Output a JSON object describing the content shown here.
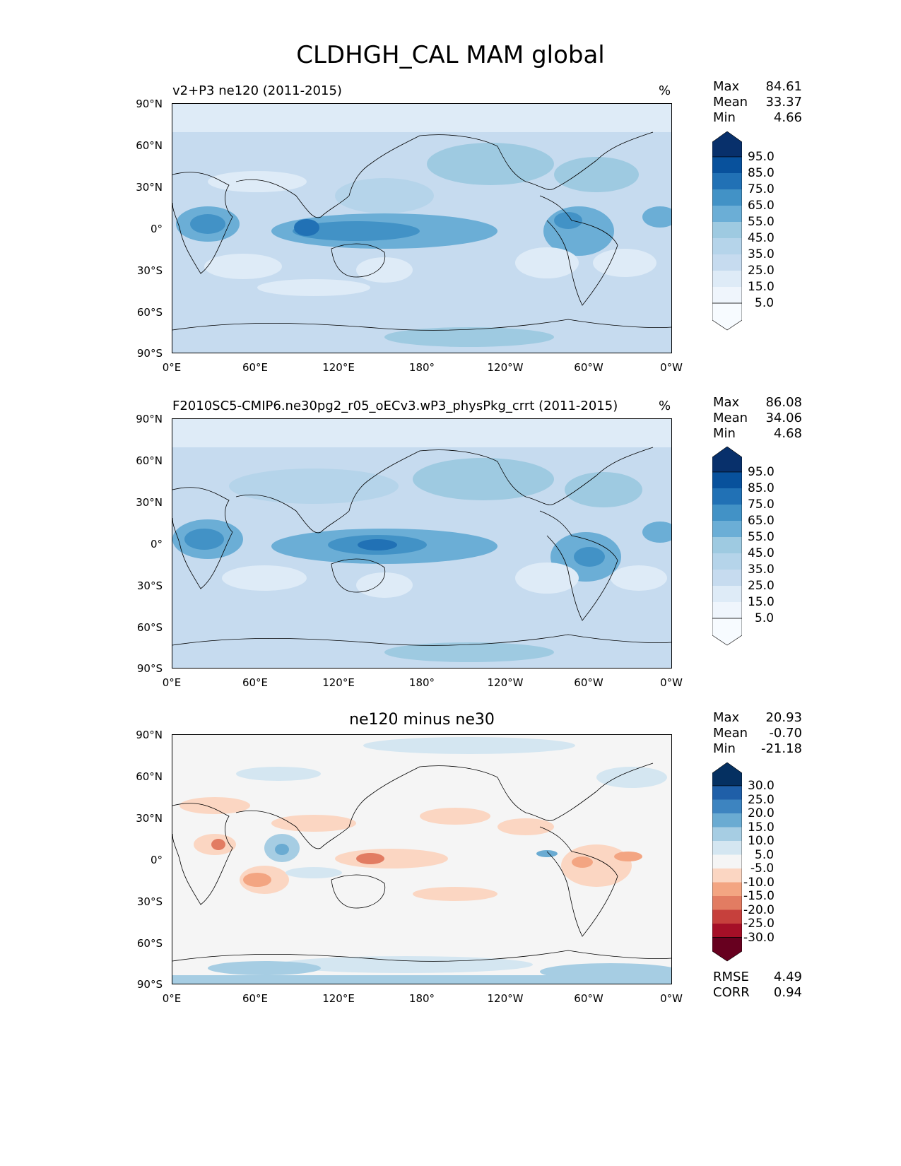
{
  "figure_title": "CLDHGH_CAL MAM global",
  "lat_ticks": [
    "90°N",
    "60°N",
    "30°N",
    "0°",
    "30°S",
    "60°S",
    "90°S"
  ],
  "lon_ticks": [
    "0°E",
    "60°E",
    "120°E",
    "180°",
    "120°W",
    "60°W",
    "0°W"
  ],
  "panels": [
    {
      "title": "v2+P3 ne120 (2011-2015)",
      "units": "%",
      "stats": [
        {
          "label": "Max",
          "value": "84.61"
        },
        {
          "label": "Mean",
          "value": "33.37"
        },
        {
          "label": "Min",
          "value": "4.66"
        }
      ],
      "colorbar": [
        "95.0",
        "85.0",
        "75.0",
        "65.0",
        "55.0",
        "45.0",
        "35.0",
        "25.0",
        "15.0",
        "5.0"
      ]
    },
    {
      "title": "F2010SC5-CMIP6.ne30pg2_r05_oECv3.wP3_physPkg_crrt (2011-2015)",
      "units": "%",
      "stats": [
        {
          "label": "Max",
          "value": "86.08"
        },
        {
          "label": "Mean",
          "value": "34.06"
        },
        {
          "label": "Min",
          "value": "4.68"
        }
      ],
      "colorbar": [
        "95.0",
        "85.0",
        "75.0",
        "65.0",
        "55.0",
        "45.0",
        "35.0",
        "25.0",
        "15.0",
        "5.0"
      ]
    },
    {
      "title": "ne120 minus ne30",
      "units": "",
      "stats": [
        {
          "label": "Max",
          "value": "20.93"
        },
        {
          "label": "Mean",
          "value": "-0.70"
        },
        {
          "label": "Min",
          "value": "-21.18"
        }
      ],
      "colorbar": [
        "30.0",
        "25.0",
        "20.0",
        "15.0",
        "10.0",
        "5.0",
        "-5.0",
        "-10.0",
        "-15.0",
        "-20.0",
        "-25.0",
        "-30.0"
      ],
      "metrics": [
        {
          "label": "RMSE",
          "value": "4.49"
        },
        {
          "label": "CORR",
          "value": "0.94"
        }
      ]
    }
  ],
  "colors": {
    "blues": [
      "#08306b",
      "#08519c",
      "#2171b5",
      "#4292c6",
      "#6baed6",
      "#9ecae1",
      "#b5d4ea",
      "#c6dbef",
      "#deebf7",
      "#eff5fc",
      "#f7fbff"
    ],
    "rdbu": [
      "#053061",
      "#1f5fa8",
      "#3d84c0",
      "#6aabd2",
      "#a6cde3",
      "#d4e6f1",
      "#f5f5f5",
      "#fbd6c2",
      "#f3a582",
      "#e27c62",
      "#c6403c",
      "#a50f27",
      "#67001f"
    ]
  }
}
